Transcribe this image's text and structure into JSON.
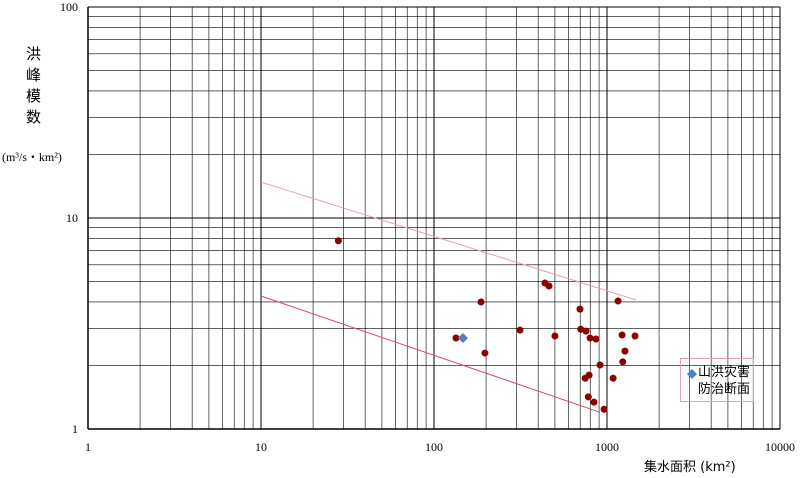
{
  "chart_data": {
    "type": "scatter",
    "y_label": "洪峰模数",
    "y_unit": "(m³/s・km²)",
    "x_label": "集水面积 (km²)",
    "xlog": true,
    "ylog": true,
    "grid": true,
    "xlim": [
      1,
      10000
    ],
    "ylim": [
      1,
      100
    ],
    "xticks": [
      1,
      10,
      100,
      1000,
      10000
    ],
    "yticks": [
      1,
      10,
      100
    ],
    "series": [
      {
        "mode": "markers",
        "marker": "circle",
        "color": "#8b0000",
        "x": [
          28,
          134,
          187,
          197,
          314,
          438,
          462,
          500,
          698,
          705,
          756,
          798,
          748,
          788,
          780,
          863,
          841,
          912,
          962,
          1158,
          1085,
          1222,
          1270,
          1233,
          1452
        ],
        "values": [
          7.8,
          2.7,
          4.0,
          2.29,
          2.94,
          4.92,
          4.76,
          2.76,
          3.7,
          2.97,
          2.91,
          2.7,
          1.74,
          1.8,
          1.42,
          2.67,
          1.34,
          2.01,
          1.24,
          4.04,
          1.74,
          2.79,
          2.34,
          2.08,
          2.76
        ]
      },
      {
        "mode": "markers",
        "marker": "diamond",
        "color": "#4f81bd",
        "name": "山洪灾害防治断面",
        "x": [
          147
        ],
        "values": [
          2.7
        ]
      },
      {
        "mode": "line",
        "color": "#e8a0a8",
        "x": [
          10,
          1472
        ],
        "values": [
          14.8,
          4.09
        ]
      },
      {
        "mode": "line",
        "color": "#d05060",
        "x": [
          10,
          912
        ],
        "values": [
          4.27,
          1.2
        ]
      }
    ]
  }
}
